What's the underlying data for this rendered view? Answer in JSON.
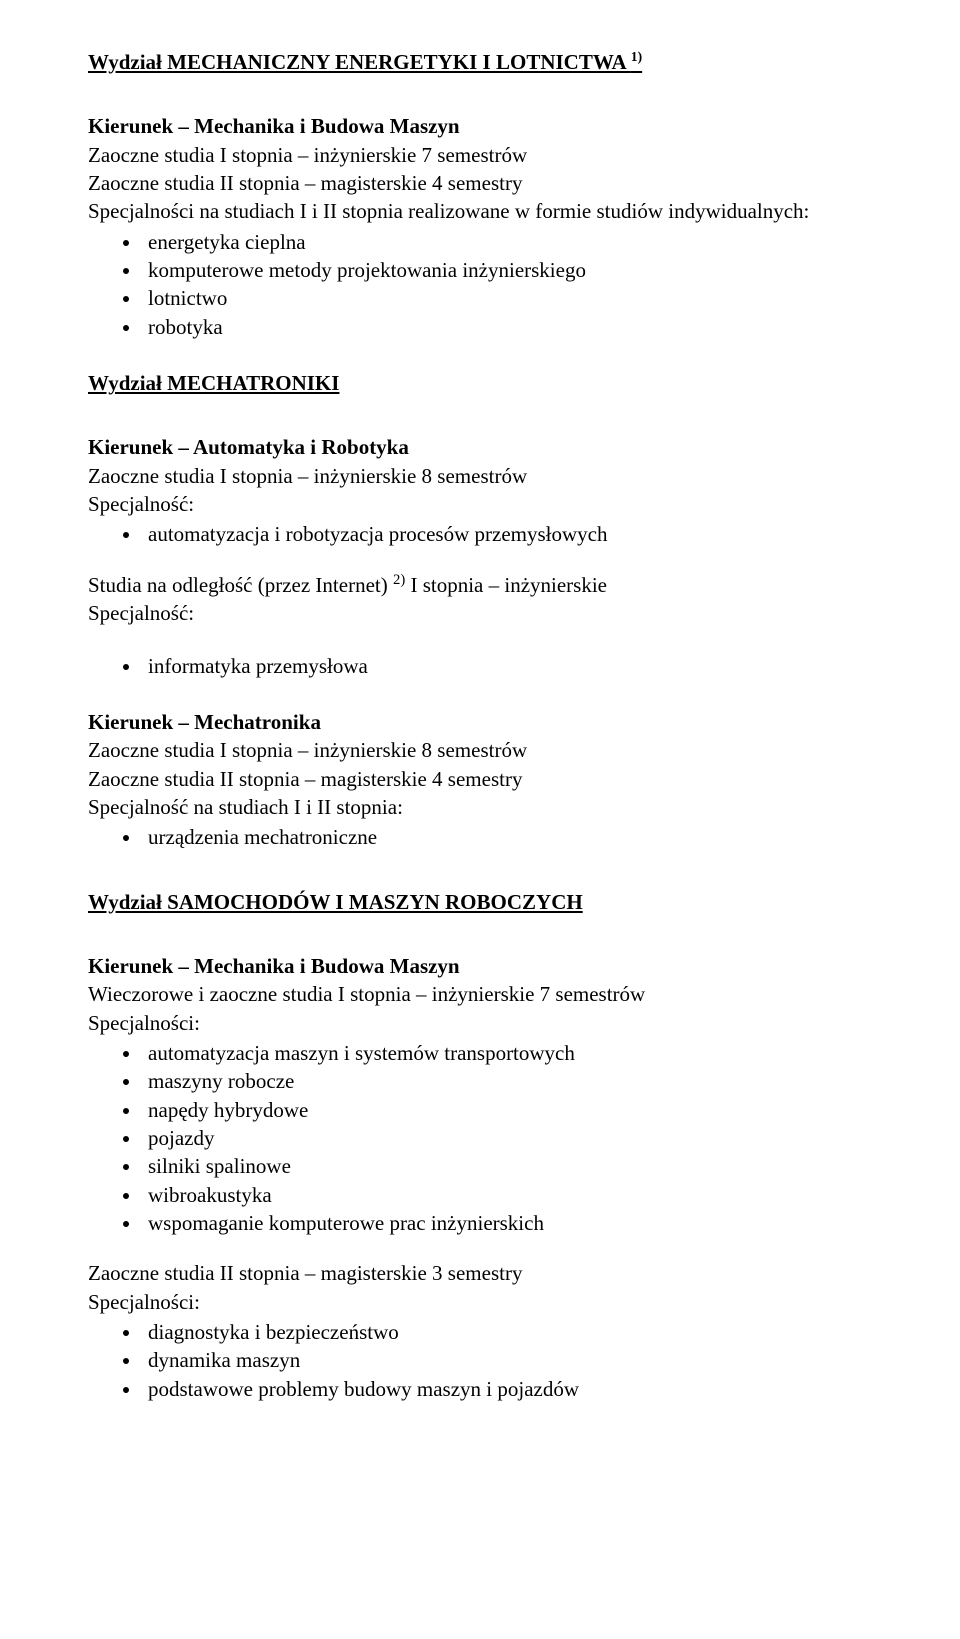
{
  "dept1": {
    "title": "Wydział  MECHANICZNY ENERGETYKI I LOTNICTWA ",
    "sup": "1)",
    "k1_name": "Kierunek – Mechanika i Budowa Maszyn",
    "k1_l1": "Zaoczne studia I stopnia – inżynierskie 7 semestrów",
    "k1_l2": "Zaoczne studia II stopnia – magisterskie 4 semestry",
    "k1_l3": "Specjalności na studiach I i II stopnia realizowane w formie studiów indywidualnych:",
    "k1_bullets": [
      "energetyka cieplna",
      "komputerowe metody projektowania inżynierskiego",
      "lotnictwo",
      "robotyka"
    ]
  },
  "dept2": {
    "title": "Wydział  MECHATRONIKI",
    "k1_name": "Kierunek – Automatyka i Robotyka",
    "k1_l1": "Zaoczne studia I stopnia – inżynierskie 8 semestrów",
    "k1_l2": "Specjalność:",
    "k1_bullets": [
      "automatyzacja i robotyzacja procesów przemysłowych"
    ],
    "k1_dist_pre": "Studia na odległość (przez Internet) ",
    "k1_dist_sup": "2)",
    "k1_dist_post": " I stopnia – inżynierskie",
    "k1_dist_l2": "Specjalność:",
    "k1_dist_bullets": [
      "informatyka przemysłowa"
    ],
    "k2_name": "Kierunek – Mechatronika",
    "k2_l1": "Zaoczne studia I stopnia – inżynierskie 8 semestrów",
    "k2_l2": "Zaoczne studia II stopnia – magisterskie 4 semestry",
    "k2_l3": "Specjalność na studiach I i II stopnia:",
    "k2_bullets": [
      "urządzenia mechatroniczne"
    ]
  },
  "dept3": {
    "title": "Wydział  SAMOCHODÓW I MASZYN ROBOCZYCH",
    "k1_name": "Kierunek – Mechanika i Budowa Maszyn",
    "k1_l1": "Wieczorowe i zaoczne studia I stopnia – inżynierskie 7 semestrów",
    "k1_l2": "Specjalności:",
    "k1_bullets": [
      "automatyzacja maszyn i systemów transportowych",
      "maszyny robocze",
      "napędy hybrydowe",
      "pojazdy",
      "silniki spalinowe",
      "wibroakustyka",
      "wspomaganie komputerowe prac inżynierskich"
    ],
    "k1_p2_l1": "Zaoczne studia II stopnia – magisterskie 3 semestry",
    "k1_p2_l2": "Specjalności:",
    "k1_p2_bullets": [
      "diagnostyka i bezpieczeństwo",
      "dynamika maszyn",
      "podstawowe problemy budowy maszyn i pojazdów"
    ]
  }
}
